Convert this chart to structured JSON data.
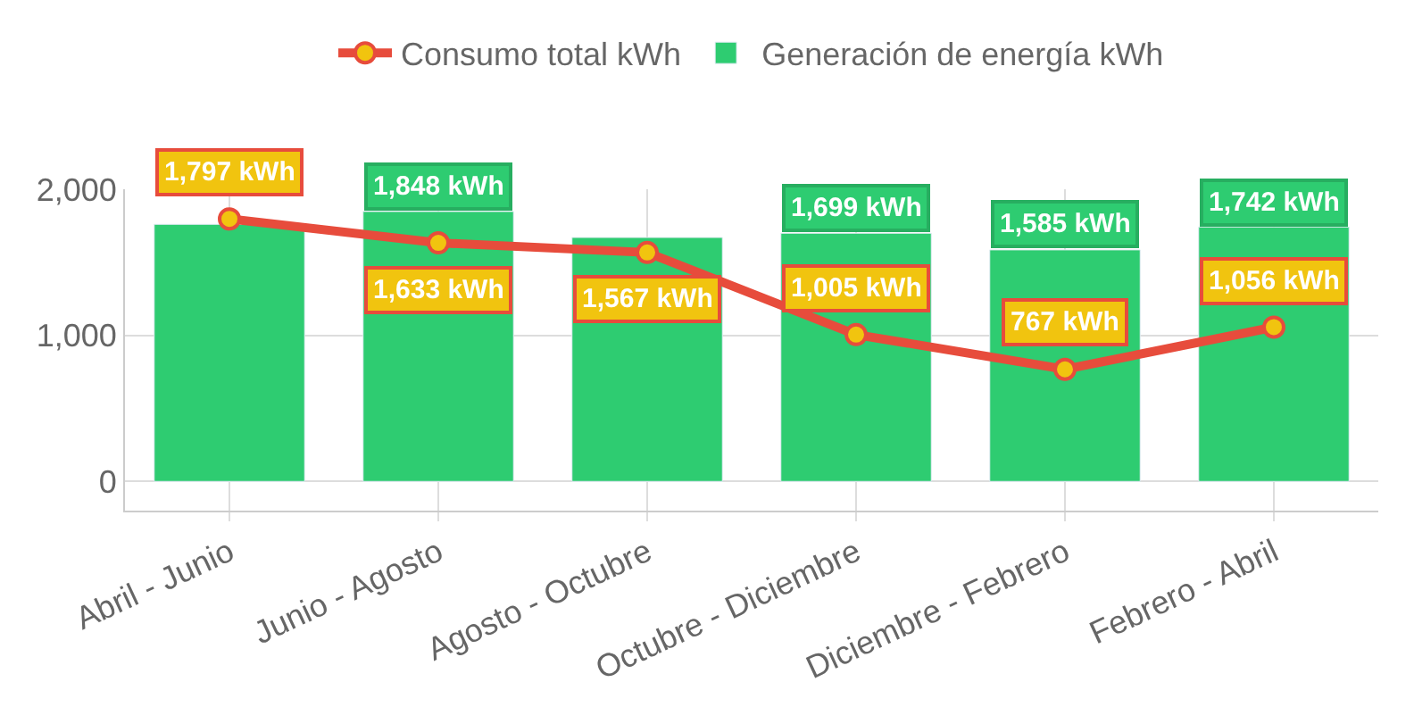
{
  "chart_data": {
    "type": "bar",
    "categories": [
      "Abril - Junio",
      "Junio - Agosto",
      "Agosto - Octubre",
      "Octubre - Diciembre",
      "Diciembre - Febrero",
      "Febrero - Abril"
    ],
    "series": [
      {
        "name": "Consumo total kWh",
        "type": "line",
        "color": "#e74c3c",
        "marker": "circle",
        "values": [
          1797,
          1633,
          1567,
          1005,
          767,
          1056
        ],
        "value_labels": [
          "1,797 kWh",
          "1,633 kWh",
          "1,567 kWh",
          "1,005 kWh",
          "767 kWh",
          "1,056 kWh"
        ]
      },
      {
        "name": "Generación de energía kWh",
        "color": "#2ecc71",
        "values": [
          1760,
          1848,
          1670,
          1699,
          1585,
          1742
        ],
        "value_labels": [
          null,
          "1,848 kWh",
          null,
          "1,699 kWh",
          "1,585 kWh",
          "1,742 kWh"
        ]
      }
    ],
    "ylim": [
      -200,
      2000
    ],
    "yticks": [
      0,
      {
        "value": 1000,
        "label": "1,000"
      },
      {
        "value": 2000,
        "label": "2,000"
      }
    ],
    "grid": true,
    "legend": "top"
  }
}
